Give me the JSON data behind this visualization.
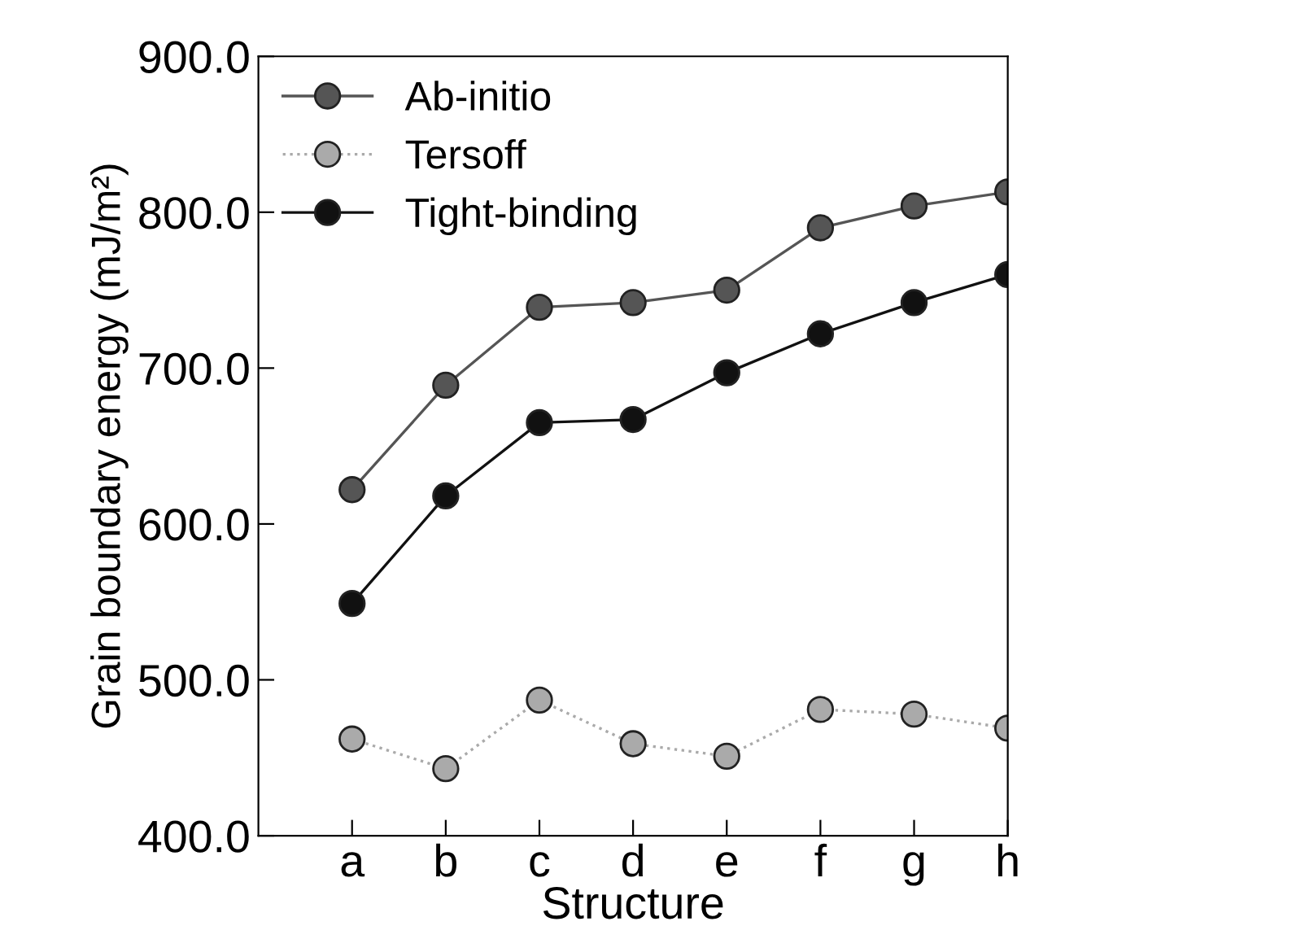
{
  "chart_data": {
    "type": "line",
    "xlabel": "Structure",
    "ylabel": "Grain boundary energy (mJ/m²)",
    "categories": [
      "a",
      "b",
      "c",
      "d",
      "e",
      "f",
      "g",
      "h"
    ],
    "series": [
      {
        "name": "Ab-initio",
        "color": "#555555",
        "line_style": "solid",
        "values": [
          622,
          689,
          739,
          742,
          750,
          790,
          804,
          813
        ]
      },
      {
        "name": "Tersoff",
        "color": "#aaaaaa",
        "line_style": "dotted",
        "values": [
          462,
          443,
          487,
          459,
          451,
          481,
          478,
          469
        ]
      },
      {
        "name": "Tight-binding",
        "color": "#111111",
        "line_style": "solid",
        "values": [
          549,
          618,
          665,
          667,
          697,
          722,
          742,
          760
        ]
      }
    ],
    "ylim": [
      400,
      900
    ],
    "yticks": [
      {
        "value": 400,
        "label": "400.0"
      },
      {
        "value": 500,
        "label": "500.0"
      },
      {
        "value": 600,
        "label": "600.0"
      },
      {
        "value": 700,
        "label": "700.0"
      },
      {
        "value": 800,
        "label": "800.0"
      },
      {
        "value": 900,
        "label": "900.0"
      }
    ],
    "marker": "circle",
    "legend": "top left",
    "grid": false
  }
}
